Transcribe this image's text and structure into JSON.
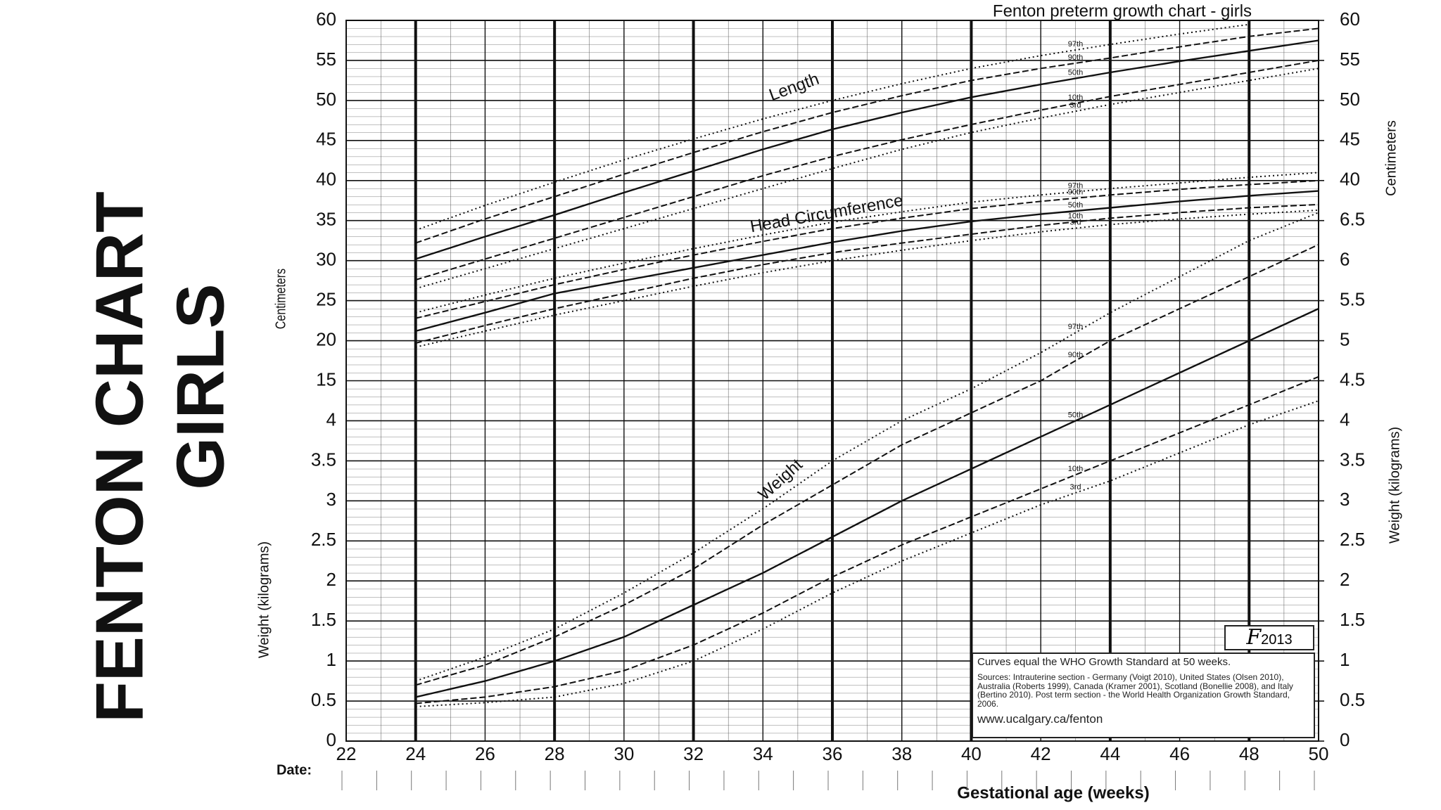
{
  "slide_title": [
    "FENTON  CHART",
    "GIRLS"
  ],
  "chart_data": {
    "type": "line",
    "title": "Fenton preterm growth chart - girls",
    "x_label": "Gestational age (weeks)",
    "date_label": "Date:",
    "y_label_cm": "Centimeters",
    "y_label_kg": "Weight (kilograms)",
    "curve_labels": [
      "Length",
      "Head Circumference",
      "Weight"
    ],
    "x": [
      24,
      26,
      28,
      30,
      32,
      34,
      36,
      38,
      40,
      42,
      44,
      46,
      48,
      50
    ],
    "xlim": [
      22,
      50
    ],
    "xticks": [
      22,
      24,
      26,
      28,
      30,
      32,
      34,
      36,
      38,
      40,
      42,
      44,
      46,
      48,
      50
    ],
    "ylim": [
      0,
      9
    ],
    "yticks": [
      0,
      0.5,
      1,
      1.5,
      2,
      2.5,
      3,
      3.5,
      4
    ],
    "y2ticks": [
      0,
      0.5,
      1,
      1.5,
      2,
      2.5,
      3,
      3.5,
      4,
      4.5,
      5,
      5.5,
      6,
      6.5
    ],
    "cm_lim": [
      -30,
      60
    ],
    "cm_ticks_left": [
      15,
      20,
      25,
      30,
      35,
      40,
      45,
      50,
      55,
      60
    ],
    "cm_ticks_right": [
      40,
      45,
      50,
      55,
      60
    ],
    "grid": true,
    "color": "#111111",
    "series": [
      {
        "name": "97th",
        "axis": "cm",
        "dash": "dotted",
        "values": [
          33.8,
          36.9,
          39.8,
          42.6,
          45.2,
          47.7,
          50,
          52.1,
          54,
          55.6,
          57,
          58.3,
          59.5,
          null
        ]
      },
      {
        "name": "90th",
        "axis": "cm",
        "dash": "dashed",
        "values": [
          32.2,
          35.2,
          38,
          40.8,
          43.5,
          46.1,
          48.5,
          50.6,
          52.5,
          54,
          55.3,
          56.7,
          58,
          59
        ]
      },
      {
        "name": "50th",
        "axis": "cm",
        "dash": "solid",
        "values": [
          30.2,
          33,
          35.7,
          38.5,
          41.2,
          43.9,
          46.4,
          48.5,
          50.4,
          52,
          53.5,
          54.9,
          56.2,
          57.5
        ]
      },
      {
        "name": "10th",
        "axis": "cm",
        "dash": "dashed",
        "values": [
          27.6,
          30.2,
          32.8,
          35.4,
          38,
          40.6,
          43,
          45.1,
          47,
          48.8,
          50.5,
          52,
          53.5,
          55
        ]
      },
      {
        "name": "3rd",
        "axis": "cm",
        "dash": "dotted",
        "values": [
          26.5,
          29,
          31.5,
          34,
          36.5,
          39,
          41.5,
          43.9,
          46,
          47.8,
          49.5,
          51,
          52.5,
          54
        ]
      },
      {
        "name": "97th",
        "axis": "cm",
        "dash": "dotted",
        "values": [
          23.5,
          25.7,
          27.8,
          29.7,
          31.5,
          33.2,
          34.8,
          36.1,
          37.3,
          38.2,
          39,
          39.7,
          40.4,
          41
        ]
      },
      {
        "name": "90th",
        "axis": "cm",
        "dash": "dashed",
        "values": [
          22.8,
          24.9,
          27,
          28.9,
          30.7,
          32.4,
          34,
          35.3,
          36.5,
          37.4,
          38.2,
          38.9,
          39.5,
          40
        ]
      },
      {
        "name": "50th",
        "axis": "cm",
        "dash": "solid",
        "values": [
          21.2,
          23.5,
          25.9,
          27.5,
          29.1,
          30.7,
          32.3,
          33.7,
          34.9,
          35.8,
          36.6,
          37.4,
          38.1,
          38.7
        ]
      },
      {
        "name": "10th",
        "axis": "cm",
        "dash": "dashed",
        "values": [
          19.7,
          21.9,
          24,
          25.9,
          27.8,
          29.5,
          31,
          32.2,
          33.3,
          34.4,
          35.3,
          36,
          36.6,
          37
        ]
      },
      {
        "name": "3rd",
        "axis": "cm",
        "dash": "dotted",
        "values": [
          19.2,
          21.2,
          23.2,
          25,
          26.8,
          28.5,
          30,
          31.3,
          32.5,
          33.6,
          34.5,
          35.2,
          35.8,
          36.3
        ]
      },
      {
        "name": "97th",
        "axis": "kg",
        "dash": "dotted",
        "values": [
          0.75,
          1.05,
          1.4,
          1.85,
          2.35,
          2.9,
          3.5,
          4,
          4.4,
          4.85,
          5.35,
          5.8,
          6.25,
          6.6
        ]
      },
      {
        "name": "90th",
        "axis": "kg",
        "dash": "dashed",
        "values": [
          0.7,
          0.95,
          1.3,
          1.7,
          2.15,
          2.7,
          3.2,
          3.7,
          4.1,
          4.5,
          5,
          5.4,
          5.8,
          6.2
        ]
      },
      {
        "name": "50th",
        "axis": "kg",
        "dash": "solid",
        "values": [
          0.55,
          0.75,
          1,
          1.3,
          1.7,
          2.1,
          2.55,
          3,
          3.4,
          3.8,
          4.2,
          4.6,
          5,
          5.4
        ]
      },
      {
        "name": "10th",
        "axis": "kg",
        "dash": "dashed",
        "values": [
          0.47,
          0.55,
          0.68,
          0.88,
          1.2,
          1.6,
          2.05,
          2.45,
          2.8,
          3.15,
          3.5,
          3.85,
          4.2,
          4.55
        ]
      },
      {
        "name": "3rd",
        "axis": "kg",
        "dash": "dotted",
        "values": [
          0.43,
          0.48,
          0.55,
          0.72,
          1,
          1.4,
          1.85,
          2.25,
          2.6,
          2.95,
          3.25,
          3.6,
          3.95,
          4.25
        ]
      }
    ],
    "note": "Curves equal the WHO Growth Standard at 50 weeks.",
    "sources": "Sources: Intrauterine section - Germany (Voigt 2010), United States (Olsen 2010), Australia (Roberts 1999), Canada (Kramer 2001), Scotland (Bonellie 2008), and Italy (Bertino 2010). Post term section - the World Health Organization Growth Standard, 2006.",
    "url": "www.ucalgary.ca/fenton",
    "logo_letter": "F",
    "logo_year": "2013"
  }
}
